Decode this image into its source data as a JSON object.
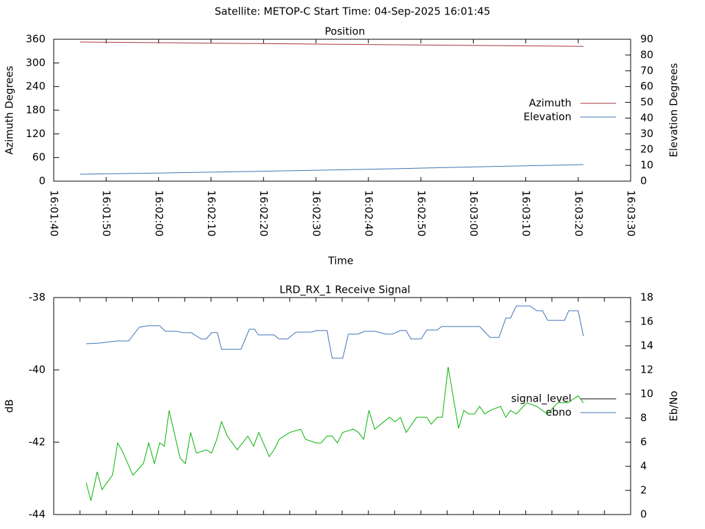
{
  "title": "Satellite: METOP-C    Start Time: 04-Sep-2025 16:01:45",
  "chart_data": [
    {
      "type": "line",
      "title": "Position",
      "xlabel": "Time",
      "ylabel": "Azimuth Degrees",
      "y2label": "Elevation Degrees",
      "legend": "right",
      "xlim": [
        57700,
        57810
      ],
      "xticks": [
        {
          "value": 57700,
          "label": "16:01:40"
        },
        {
          "value": 57710,
          "label": "16:01:50"
        },
        {
          "value": 57720,
          "label": "16:02:00"
        },
        {
          "value": 57730,
          "label": "16:02:10"
        },
        {
          "value": 57740,
          "label": "16:02:20"
        },
        {
          "value": 57750,
          "label": "16:02:30"
        },
        {
          "value": 57760,
          "label": "16:02:40"
        },
        {
          "value": 57770,
          "label": "16:02:50"
        },
        {
          "value": 57780,
          "label": "16:03:00"
        },
        {
          "value": 57790,
          "label": "16:03:10"
        },
        {
          "value": 57800,
          "label": "16:03:20"
        },
        {
          "value": 57810,
          "label": "16:03:30"
        }
      ],
      "ylim": [
        0,
        360
      ],
      "yticks": [
        0,
        60,
        120,
        180,
        240,
        300,
        360
      ],
      "y2lim": [
        0,
        90
      ],
      "y2ticks": [
        0,
        10,
        20,
        30,
        40,
        50,
        60,
        70,
        80,
        90
      ],
      "x": [
        57705,
        57713,
        57721,
        57729,
        57737,
        57745,
        57753,
        57761,
        57769,
        57777,
        57785,
        57793,
        57801
      ],
      "series": [
        {
          "name": "Azimuth",
          "color": "#a4303c",
          "values": [
            353,
            352.1,
            351.2,
            350.2,
            349.3,
            348.4,
            347.5,
            346.6,
            345.7,
            344.8,
            343.8,
            342.9,
            342
          ]
        },
        {
          "name": "Elevation",
          "color": "#3c72b0",
          "axis": "y2",
          "values": [
            4.4,
            4.8,
            5.2,
            5.7,
            6.1,
            6.6,
            7.1,
            7.6,
            8.2,
            8.8,
            9.4,
            9.9,
            10.5
          ]
        }
      ]
    },
    {
      "type": "line",
      "title": "LRD_RX_1 Receive Signal",
      "ylabel": "dB",
      "y2label": "Eb/No",
      "legend": "right",
      "xlim": [
        57700,
        57810
      ],
      "xticks": [
        57700,
        57705,
        57710,
        57715,
        57720,
        57725,
        57730,
        57735,
        57740,
        57745,
        57750,
        57755,
        57760,
        57765,
        57770,
        57775,
        57780,
        57785,
        57790,
        57795,
        57800,
        57805,
        57810
      ],
      "ylim": [
        -44,
        -38
      ],
      "yticks": [
        -44,
        -42,
        -40,
        -38
      ],
      "y2lim": [
        0,
        18
      ],
      "y2ticks": [
        0,
        2,
        4,
        6,
        8,
        10,
        12,
        14,
        16,
        18
      ],
      "series": [
        {
          "name": "signal_level",
          "color": "#000000",
          "x": [],
          "values": []
        },
        {
          "name": "ebno",
          "color": "#3c6fb8",
          "axis": "y2",
          "x": [
            57706.2,
            57708.8,
            57710.8,
            57712.1,
            57714.3,
            57716.3,
            57718.0,
            57720.2,
            57721.3,
            57723.6,
            57724.5,
            57726.2,
            57728.1,
            57729.1,
            57730.1,
            57731.2,
            57732.0,
            57735.7,
            57737.3,
            57738.3,
            57739.0,
            57742.0,
            57742.9,
            57744.6,
            57746.2,
            57749.2,
            57750.1,
            57752.1,
            57753.1,
            57755.1,
            57756.2,
            57758.0,
            57759.3,
            57761.3,
            57763.3,
            57764.6,
            57766.1,
            57767.2,
            57768.1,
            57770.1,
            57771.1,
            57773.1,
            57774.0,
            57781.2,
            57783.2,
            57784.9,
            57786.2,
            57787.1,
            57788.2,
            57790.8,
            57792.1,
            57793.2,
            57794.2,
            57797.4,
            57798.2,
            57800.0,
            57801.0
          ],
          "values": [
            14.17,
            14.23,
            14.34,
            14.4,
            14.4,
            15.54,
            15.66,
            15.66,
            15.2,
            15.2,
            15.09,
            15.09,
            14.57,
            14.57,
            15.09,
            15.09,
            13.71,
            13.71,
            15.37,
            15.37,
            14.91,
            14.91,
            14.57,
            14.57,
            15.14,
            15.14,
            15.26,
            15.26,
            12.97,
            12.97,
            14.97,
            14.97,
            15.2,
            15.2,
            14.97,
            14.97,
            15.26,
            15.26,
            14.57,
            14.57,
            15.31,
            15.31,
            15.6,
            15.6,
            14.69,
            14.69,
            16.29,
            16.29,
            17.31,
            17.31,
            16.91,
            16.91,
            16.11,
            16.11,
            16.91,
            16.91,
            14.8
          ]
        },
        {
          "color": "#00b000",
          "x": [
            57706.2,
            57707.1,
            57708.3,
            57709.2,
            57711.2,
            57712.2,
            57713.1,
            57715.1,
            57717.1,
            57718.1,
            57719.2,
            57720.2,
            57721.1,
            57722.0,
            57724.1,
            57725.1,
            57726.1,
            57727.2,
            57729.1,
            57730.1,
            57731.1,
            57732.0,
            57733.1,
            57735.0,
            57737.0,
            57738.1,
            57739.1,
            57741.1,
            57742.0,
            57743.0,
            57745.0,
            57747.1,
            57748.0,
            57750.1,
            57751.0,
            57752.1,
            57753.1,
            57754.1,
            57755.1,
            57757.1,
            57758.1,
            57759.1,
            57760.1,
            57761.2,
            57764.0,
            57765.1,
            57766.1,
            57767.2,
            57769.2,
            57771.1,
            57772.0,
            57773.1,
            57774.1,
            57775.2,
            57777.2,
            57778.2,
            57779.1,
            57780.2,
            57781.2,
            57782.2,
            57783.2,
            57785.2,
            57786.2,
            57787.1,
            57788.2,
            57790.2,
            57792.1,
            57794.1,
            57796.1,
            57798.0,
            57800.0,
            57801.0
          ],
          "values": [
            -43.12,
            -43.62,
            -42.82,
            -43.31,
            -42.91,
            -42.02,
            -42.25,
            -42.91,
            -42.59,
            -42.02,
            -42.59,
            -42.02,
            -42.11,
            -41.12,
            -42.44,
            -42.59,
            -41.73,
            -42.3,
            -42.21,
            -42.3,
            -41.92,
            -41.43,
            -41.83,
            -42.21,
            -41.83,
            -42.11,
            -41.73,
            -42.4,
            -42.21,
            -41.92,
            -41.73,
            -41.64,
            -41.92,
            -42.02,
            -42.02,
            -41.83,
            -41.83,
            -42.02,
            -41.73,
            -41.64,
            -41.73,
            -41.92,
            -41.12,
            -41.64,
            -41.31,
            -41.43,
            -41.31,
            -41.73,
            -41.31,
            -41.31,
            -41.5,
            -41.31,
            -41.31,
            -39.92,
            -41.62,
            -41.12,
            -41.22,
            -41.22,
            -41.01,
            -41.22,
            -41.12,
            -41.01,
            -41.31,
            -41.12,
            -41.22,
            -40.91,
            -41.01,
            -41.22,
            -40.91,
            -40.91,
            -40.72,
            -40.91
          ]
        }
      ]
    }
  ]
}
